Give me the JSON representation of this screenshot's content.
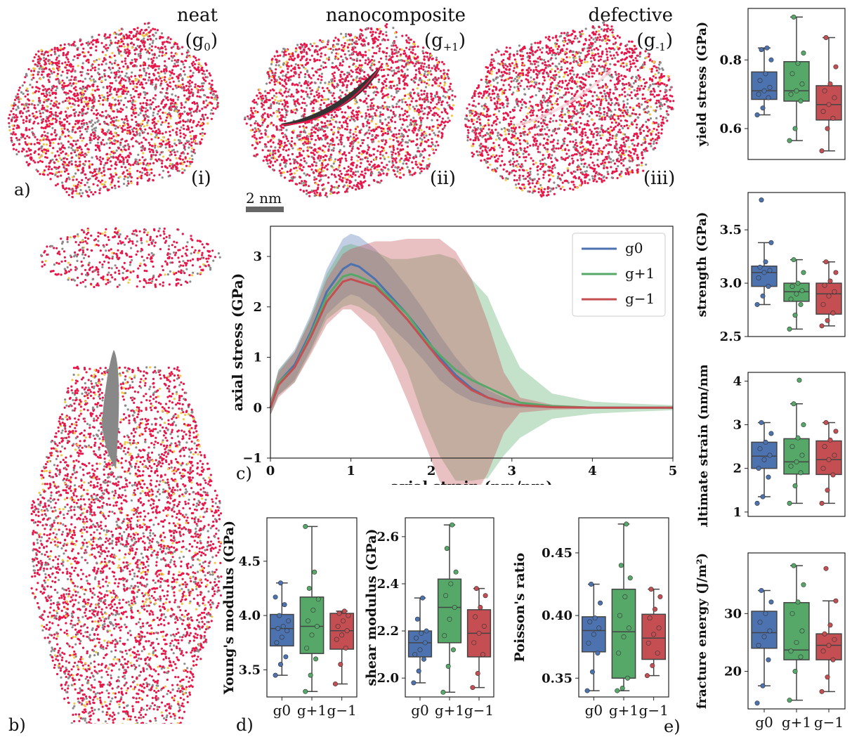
{
  "panel_labels": {
    "a": "a)",
    "b": "b)",
    "c": "c)",
    "d": "d)",
    "e": "e)"
  },
  "snapshots": [
    {
      "title": "neat",
      "group": "(g0)",
      "roman": "(i)"
    },
    {
      "title": "nanocomposite",
      "group": "(g+1)",
      "roman": "(ii)"
    },
    {
      "title": "defective",
      "group": "(g-1)",
      "roman": "(iii)"
    }
  ],
  "scale_bar": "2 nm",
  "colors": {
    "g0": "#4c72b0",
    "gp1": "#55a868",
    "gm1": "#c44e52",
    "atom_main": "#e8174a",
    "atom_alt": "#8a8a8a",
    "atom_yellow": "#f2c744"
  },
  "chart_data": [
    {
      "id": "stress_strain",
      "type": "line",
      "xlabel": "axial strain (nm/nm)",
      "ylabel": "axial stress (GPa)",
      "xlim": [
        0,
        5
      ],
      "ylim": [
        -1,
        3.6
      ],
      "xticks": [
        0,
        1,
        2,
        3,
        4,
        5
      ],
      "yticks": [
        -1,
        0,
        1,
        2,
        3
      ],
      "legend_position": "top-right",
      "series": [
        {
          "name": "g0",
          "key": "g0",
          "x": [
            0,
            0.1,
            0.3,
            0.5,
            0.7,
            0.9,
            1.0,
            1.1,
            1.3,
            1.5,
            1.7,
            1.9,
            2.1,
            2.3,
            2.5,
            2.7,
            2.9,
            3.1,
            3.5,
            4.0,
            4.5,
            5.0
          ],
          "y": [
            0,
            0.5,
            0.85,
            1.5,
            2.3,
            2.75,
            2.85,
            2.8,
            2.55,
            2.2,
            1.85,
            1.45,
            1.0,
            0.65,
            0.38,
            0.2,
            0.1,
            0.05,
            0.02,
            0.0,
            0.0,
            0.0
          ],
          "band": [
            0.15,
            0.25,
            0.3,
            0.35,
            0.45,
            0.6,
            0.6,
            0.6,
            0.6,
            0.6,
            0.55,
            0.5,
            0.45,
            0.35,
            0.25,
            0.15,
            0.1,
            0.05,
            0.03,
            0.02,
            0.02,
            0.02
          ]
        },
        {
          "name": "g+1",
          "key": "gp1",
          "x": [
            0,
            0.1,
            0.3,
            0.5,
            0.7,
            0.9,
            1.0,
            1.1,
            1.3,
            1.5,
            1.7,
            1.9,
            2.1,
            2.3,
            2.5,
            2.7,
            2.9,
            3.1,
            3.5,
            4.0,
            4.5,
            5.0
          ],
          "y": [
            0,
            0.5,
            0.8,
            1.45,
            2.2,
            2.6,
            2.65,
            2.6,
            2.45,
            2.15,
            1.85,
            1.4,
            1.05,
            0.75,
            0.55,
            0.4,
            0.25,
            0.1,
            0.03,
            0.0,
            0.0,
            0.0
          ],
          "band": [
            0.15,
            0.25,
            0.3,
            0.35,
            0.45,
            0.6,
            0.6,
            0.6,
            0.65,
            0.8,
            1.1,
            1.6,
            2.0,
            2.2,
            2.0,
            1.8,
            1.2,
            0.7,
            0.25,
            0.12,
            0.08,
            0.05
          ]
        },
        {
          "name": "g−1",
          "key": "gm1",
          "x": [
            0,
            0.1,
            0.3,
            0.5,
            0.7,
            0.9,
            1.0,
            1.1,
            1.3,
            1.5,
            1.7,
            1.9,
            2.1,
            2.3,
            2.5,
            2.7,
            2.9,
            3.1,
            3.5,
            4.0,
            4.5,
            5.0
          ],
          "y": [
            0,
            0.45,
            0.8,
            1.4,
            2.1,
            2.5,
            2.55,
            2.5,
            2.4,
            2.1,
            1.75,
            1.35,
            0.95,
            0.6,
            0.35,
            0.2,
            0.1,
            0.05,
            0.01,
            0.0,
            0.0,
            0.0
          ],
          "band": [
            0.15,
            0.25,
            0.3,
            0.35,
            0.45,
            0.55,
            0.6,
            0.7,
            0.9,
            1.2,
            1.6,
            2.0,
            2.4,
            2.5,
            2.2,
            1.5,
            0.6,
            0.15,
            0.05,
            0.02,
            0.02,
            0.02
          ]
        }
      ]
    },
    {
      "id": "youngs",
      "type": "box",
      "ylabel": "Young's modulus (GPa)",
      "ylim": [
        3.25,
        4.9
      ],
      "yticks": [
        3.5,
        4.0,
        4.5
      ],
      "tick_labels": [
        "3.5",
        "4.0",
        "4.5"
      ],
      "categories": [
        "g0",
        "g+1",
        "g−1"
      ],
      "boxes": [
        {
          "min": 3.45,
          "q1": 3.72,
          "median": 3.88,
          "q3": 4.01,
          "max": 4.3,
          "points": [
            3.45,
            3.55,
            3.62,
            3.75,
            3.8,
            3.86,
            3.88,
            3.9,
            3.95,
            4.0,
            4.1,
            4.17,
            4.3
          ]
        },
        {
          "min": 3.3,
          "q1": 3.65,
          "median": 3.9,
          "q3": 4.17,
          "max": 4.82,
          "points": [
            3.3,
            3.45,
            3.6,
            3.7,
            3.82,
            3.9,
            3.95,
            4.05,
            4.15,
            4.25,
            4.4,
            4.82
          ]
        },
        {
          "min": 3.37,
          "q1": 3.69,
          "median": 3.86,
          "q3": 4.02,
          "max": 4.04,
          "points": [
            3.37,
            3.55,
            3.7,
            3.78,
            3.82,
            3.86,
            3.9,
            3.95,
            4.0,
            4.02,
            4.04
          ]
        }
      ]
    },
    {
      "id": "shear",
      "type": "box",
      "ylabel": "shear modulus (GPa)",
      "ylim": [
        1.92,
        2.68
      ],
      "yticks": [
        2.0,
        2.2,
        2.4,
        2.6
      ],
      "tick_labels": [
        "2.0",
        "2.2",
        "2.4",
        "2.6"
      ],
      "categories": [
        "g0",
        "g+1",
        "g−1"
      ],
      "boxes": [
        {
          "min": 1.98,
          "q1": 2.09,
          "median": 2.15,
          "q3": 2.2,
          "max": 2.34,
          "points": [
            1.98,
            2.03,
            2.08,
            2.1,
            2.12,
            2.15,
            2.17,
            2.19,
            2.2,
            2.25,
            2.34
          ]
        },
        {
          "min": 1.94,
          "q1": 2.15,
          "median": 2.3,
          "q3": 2.42,
          "max": 2.65,
          "points": [
            1.94,
            2.05,
            2.12,
            2.18,
            2.25,
            2.3,
            2.35,
            2.4,
            2.45,
            2.55,
            2.65
          ]
        },
        {
          "min": 1.96,
          "q1": 2.09,
          "median": 2.19,
          "q3": 2.29,
          "max": 2.38,
          "points": [
            1.96,
            2.02,
            2.1,
            2.15,
            2.19,
            2.22,
            2.26,
            2.3,
            2.35,
            2.38
          ]
        }
      ]
    },
    {
      "id": "poisson",
      "type": "box",
      "ylabel": "Poisson's ratio",
      "ylim": [
        0.335,
        0.478
      ],
      "yticks": [
        0.35,
        0.4,
        0.45
      ],
      "tick_labels": [
        "0.35",
        "0.40",
        "0.45"
      ],
      "categories": [
        "g0",
        "g+1",
        "g−1"
      ],
      "boxes": [
        {
          "min": 0.34,
          "q1": 0.371,
          "median": 0.388,
          "q3": 0.399,
          "max": 0.425,
          "points": [
            0.34,
            0.355,
            0.37,
            0.378,
            0.385,
            0.39,
            0.395,
            0.398,
            0.41,
            0.425
          ]
        },
        {
          "min": 0.34,
          "q1": 0.35,
          "median": 0.387,
          "q3": 0.421,
          "max": 0.473,
          "points": [
            0.34,
            0.342,
            0.35,
            0.37,
            0.383,
            0.39,
            0.4,
            0.415,
            0.43,
            0.44,
            0.473
          ]
        },
        {
          "min": 0.352,
          "q1": 0.365,
          "median": 0.382,
          "q3": 0.401,
          "max": 0.421,
          "points": [
            0.352,
            0.36,
            0.37,
            0.378,
            0.385,
            0.39,
            0.398,
            0.405,
            0.415,
            0.421
          ]
        }
      ]
    },
    {
      "id": "yield",
      "type": "box",
      "ylabel": "yield stress (GPa)",
      "ylim": [
        0.51,
        0.95
      ],
      "yticks": [
        0.6,
        0.8
      ],
      "tick_labels": [
        "0.6",
        "0.8"
      ],
      "categories": [
        "g0",
        "g+1",
        "g−1"
      ],
      "boxes": [
        {
          "min": 0.64,
          "q1": 0.685,
          "median": 0.71,
          "q3": 0.765,
          "max": 0.835,
          "points": [
            0.64,
            0.66,
            0.69,
            0.7,
            0.71,
            0.72,
            0.74,
            0.76,
            0.8,
            0.83,
            0.835
          ]
        },
        {
          "min": 0.565,
          "q1": 0.68,
          "median": 0.71,
          "q3": 0.795,
          "max": 0.925,
          "points": [
            0.565,
            0.6,
            0.68,
            0.7,
            0.71,
            0.73,
            0.76,
            0.79,
            0.82,
            0.925
          ]
        },
        {
          "min": 0.535,
          "q1": 0.625,
          "median": 0.67,
          "q3": 0.725,
          "max": 0.865,
          "points": [
            0.535,
            0.6,
            0.63,
            0.65,
            0.67,
            0.69,
            0.71,
            0.73,
            0.78,
            0.865
          ]
        }
      ]
    },
    {
      "id": "strength",
      "type": "box",
      "ylabel": "strength (GPa)",
      "ylim": [
        2.5,
        3.85
      ],
      "yticks": [
        2.5,
        3.0,
        3.5
      ],
      "tick_labels": [
        "2.5",
        "3.0",
        "3.5"
      ],
      "categories": [
        "g0",
        "g+1",
        "g−1"
      ],
      "boxes": [
        {
          "min": 2.8,
          "q1": 2.97,
          "median": 3.1,
          "q3": 3.16,
          "max": 3.38,
          "points": [
            2.8,
            2.88,
            2.97,
            3.05,
            3.1,
            3.12,
            3.15,
            3.2,
            3.38,
            3.78
          ]
        },
        {
          "min": 2.57,
          "q1": 2.83,
          "median": 2.92,
          "q3": 3.0,
          "max": 3.22,
          "points": [
            2.57,
            2.7,
            2.8,
            2.85,
            2.9,
            2.93,
            2.97,
            3.0,
            3.1,
            3.22
          ]
        },
        {
          "min": 2.6,
          "q1": 2.71,
          "median": 2.9,
          "q3": 3.0,
          "max": 3.2,
          "points": [
            2.6,
            2.65,
            2.72,
            2.8,
            2.88,
            2.92,
            2.98,
            3.02,
            3.1,
            3.2
          ]
        }
      ]
    },
    {
      "id": "ultimate",
      "type": "box",
      "ylabel": "ultimate strain (nm/nm)",
      "ylim": [
        0.9,
        4.2
      ],
      "yticks": [
        1,
        2,
        3,
        4
      ],
      "tick_labels": [
        "1",
        "2",
        "3",
        "4"
      ],
      "categories": [
        "g0",
        "g+1",
        "g−1"
      ],
      "boxes": [
        {
          "min": 1.35,
          "q1": 2.0,
          "median": 2.28,
          "q3": 2.6,
          "max": 3.05,
          "points": [
            1.2,
            1.35,
            1.8,
            2.0,
            2.2,
            2.3,
            2.45,
            2.6,
            2.8,
            3.05
          ]
        },
        {
          "min": 1.2,
          "q1": 1.87,
          "median": 2.15,
          "q3": 2.68,
          "max": 3.48,
          "points": [
            1.2,
            1.6,
            1.9,
            2.05,
            2.15,
            2.3,
            2.5,
            2.7,
            3.0,
            3.48,
            4.02
          ]
        },
        {
          "min": 1.2,
          "q1": 1.86,
          "median": 2.2,
          "q3": 2.63,
          "max": 3.05,
          "points": [
            1.2,
            1.5,
            1.85,
            2.0,
            2.2,
            2.3,
            2.5,
            2.65,
            2.85,
            3.05
          ]
        }
      ]
    },
    {
      "id": "fracture",
      "type": "box",
      "ylabel": "fracture energy (J/m²)",
      "ylim": [
        13.5,
        40.5
      ],
      "yticks": [
        20,
        30
      ],
      "tick_labels": [
        "20",
        "30"
      ],
      "categories": [
        "g0",
        "g+1",
        "g−1"
      ],
      "boxes": [
        {
          "min": 17.5,
          "q1": 24.0,
          "median": 26.7,
          "q3": 30.4,
          "max": 34.0,
          "points": [
            14.5,
            17.5,
            22.0,
            24.5,
            26.0,
            27.0,
            28.5,
            30.0,
            32.0,
            34.0
          ]
        },
        {
          "min": 15.0,
          "q1": 22.0,
          "median": 23.7,
          "q3": 31.9,
          "max": 38.3,
          "points": [
            15.0,
            20.0,
            22.5,
            23.5,
            25.0,
            27.0,
            30.0,
            32.0,
            35.0,
            38.3
          ]
        },
        {
          "min": 16.5,
          "q1": 22.0,
          "median": 24.5,
          "q3": 26.5,
          "max": 32.2,
          "points": [
            16.5,
            19.0,
            22.0,
            23.5,
            24.5,
            25.5,
            26.5,
            28.0,
            32.2,
            37.8
          ]
        }
      ]
    }
  ]
}
